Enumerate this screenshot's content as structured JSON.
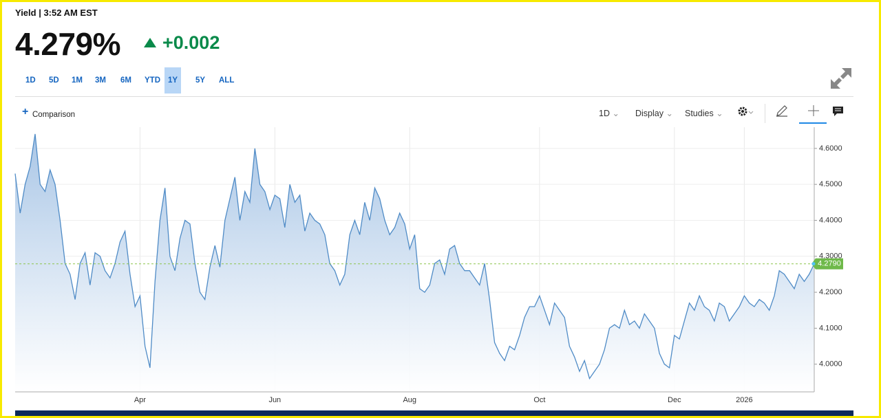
{
  "header": {
    "title": "Yield | 3:52 AM EST",
    "price": "4.279%",
    "change": "+0.002",
    "ranges": [
      "1D",
      "5D",
      "1M",
      "3M",
      "6M",
      "YTD",
      "1Y",
      "5Y",
      "ALL"
    ],
    "selected": "1Y"
  },
  "toolbar": {
    "comparison": "Comparison",
    "interval": "1D",
    "display": "Display",
    "studies": "Studies"
  },
  "chart_data": {
    "type": "area",
    "categories": [
      null,
      null,
      null,
      null,
      null,
      null,
      null,
      null,
      null,
      null,
      null,
      null,
      null,
      null,
      null,
      null,
      null,
      null,
      null,
      null,
      null,
      null,
      null,
      null,
      null,
      "Apr",
      null,
      null,
      null,
      null,
      null,
      null,
      null,
      null,
      null,
      null,
      null,
      null,
      null,
      null,
      null,
      null,
      null,
      null,
      null,
      null,
      null,
      null,
      null,
      null,
      null,
      null,
      "Jun",
      null,
      null,
      null,
      null,
      null,
      null,
      null,
      null,
      null,
      null,
      null,
      null,
      null,
      null,
      null,
      null,
      null,
      null,
      null,
      null,
      null,
      null,
      null,
      null,
      null,
      null,
      "Aug",
      null,
      null,
      null,
      null,
      null,
      null,
      null,
      null,
      null,
      null,
      null,
      null,
      null,
      null,
      null,
      null,
      null,
      null,
      null,
      null,
      null,
      null,
      null,
      null,
      null,
      "Oct",
      null,
      null,
      null,
      null,
      null,
      null,
      null,
      null,
      null,
      null,
      null,
      null,
      null,
      null,
      null,
      null,
      null,
      null,
      null,
      null,
      null,
      null,
      null,
      null,
      null,
      null,
      "Dec",
      null,
      null,
      null,
      null,
      null,
      null,
      null,
      null,
      null,
      null,
      null,
      null,
      null,
      "2026",
      null,
      null,
      null,
      null,
      null,
      null,
      null,
      null,
      null,
      null,
      null,
      null,
      null,
      null
    ],
    "values": [
      4.53,
      4.42,
      4.5,
      4.55,
      4.64,
      4.5,
      4.48,
      4.54,
      4.5,
      4.4,
      4.28,
      4.25,
      4.18,
      4.28,
      4.31,
      4.22,
      4.31,
      4.3,
      4.26,
      4.24,
      4.28,
      4.34,
      4.37,
      4.25,
      4.16,
      4.19,
      4.05,
      3.99,
      4.23,
      4.4,
      4.49,
      4.3,
      4.26,
      4.35,
      4.4,
      4.39,
      4.28,
      4.2,
      4.18,
      4.27,
      4.33,
      4.27,
      4.4,
      4.46,
      4.52,
      4.4,
      4.48,
      4.45,
      4.6,
      4.5,
      4.48,
      4.43,
      4.47,
      4.46,
      4.38,
      4.5,
      4.45,
      4.47,
      4.37,
      4.42,
      4.4,
      4.39,
      4.36,
      4.28,
      4.26,
      4.22,
      4.25,
      4.36,
      4.4,
      4.36,
      4.45,
      4.4,
      4.49,
      4.46,
      4.4,
      4.36,
      4.38,
      4.42,
      4.39,
      4.32,
      4.36,
      4.21,
      4.2,
      4.22,
      4.28,
      4.29,
      4.25,
      4.32,
      4.33,
      4.28,
      4.26,
      4.26,
      4.24,
      4.22,
      4.28,
      4.18,
      4.06,
      4.03,
      4.01,
      4.05,
      4.04,
      4.08,
      4.13,
      4.16,
      4.16,
      4.19,
      4.15,
      4.11,
      4.17,
      4.15,
      4.13,
      4.05,
      4.02,
      3.98,
      4.01,
      3.96,
      3.98,
      4.0,
      4.04,
      4.1,
      4.11,
      4.1,
      4.15,
      4.11,
      4.12,
      4.1,
      4.14,
      4.12,
      4.1,
      4.03,
      4.0,
      3.99,
      4.08,
      4.07,
      4.12,
      4.17,
      4.15,
      4.19,
      4.16,
      4.15,
      4.12,
      4.17,
      4.16,
      4.12,
      4.14,
      4.16,
      4.19,
      4.17,
      4.16,
      4.18,
      4.17,
      4.15,
      4.19,
      4.26,
      4.25,
      4.23,
      4.21,
      4.25,
      4.23,
      4.25,
      4.279
    ],
    "color": "#4f8bc6",
    "ylim": [
      3.923,
      4.659
    ],
    "yticks": [
      {
        "value": 4.0,
        "label": "4.0000"
      },
      {
        "value": 4.1,
        "label": "4.1000"
      },
      {
        "value": 4.2,
        "label": "4.2000"
      },
      {
        "value": 4.3,
        "label": "4.3000"
      },
      {
        "value": 4.4,
        "label": "4.4000"
      },
      {
        "value": 4.5,
        "label": "4.5000"
      },
      {
        "value": 4.6,
        "label": "4.6000"
      }
    ],
    "current_value": {
      "value": 4.279,
      "label": "4.2790"
    },
    "grid": true
  }
}
